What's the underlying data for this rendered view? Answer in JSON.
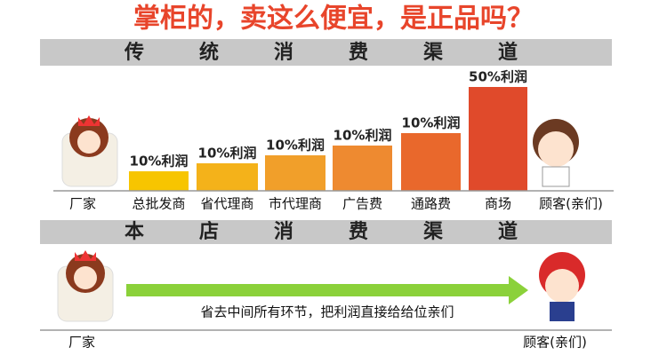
{
  "title": "掌柜的，卖这么便宜，是正品吗？",
  "traditional": {
    "heading": "传统消费渠道",
    "source": "厂家",
    "customer": "顾客(亲们)",
    "stages": [
      {
        "label": "总批发商",
        "profit": "10%利润"
      },
      {
        "label": "省代理商",
        "profit": "10%利润"
      },
      {
        "label": "市代理商",
        "profit": "10%利润"
      },
      {
        "label": "广告费",
        "profit": "10%利润"
      },
      {
        "label": "通路费",
        "profit": "10%利润"
      },
      {
        "label": "商场",
        "profit": "50%利润"
      }
    ]
  },
  "ours": {
    "heading": "本店消费渠道",
    "arrow_text": "省去中间所有环节，把利润直接给给位亲们",
    "source": "厂家",
    "customer": "顾客(亲们)"
  }
}
